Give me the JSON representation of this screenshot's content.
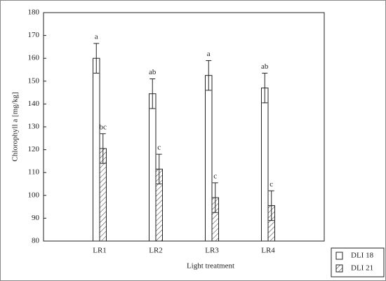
{
  "chart_data": {
    "type": "bar",
    "categories": [
      "LR1",
      "LR2",
      "LR3",
      "LR4"
    ],
    "x_label": "Light treatment",
    "y_label": "Chlorophyll a [mg/kg]",
    "ylim": [
      80,
      180
    ],
    "yticks": [
      80,
      90,
      100,
      110,
      120,
      130,
      140,
      150,
      160,
      170,
      180
    ],
    "series": [
      {
        "name": "DLI 18",
        "color": "#ffffff",
        "pattern": "none",
        "values": [
          160,
          144.5,
          152.5,
          147
        ],
        "errors": [
          6.5,
          6.5,
          6.5,
          6.5
        ],
        "letters": [
          "a",
          "ab",
          "a",
          "ab"
        ]
      },
      {
        "name": "DLI 21",
        "color": "#ffffff",
        "pattern": "hatch",
        "values": [
          120.5,
          111.5,
          99,
          95.5
        ],
        "errors": [
          6.5,
          6.5,
          6.5,
          6.5
        ],
        "letters": [
          "bc",
          "c",
          "c",
          "c"
        ]
      }
    ]
  }
}
